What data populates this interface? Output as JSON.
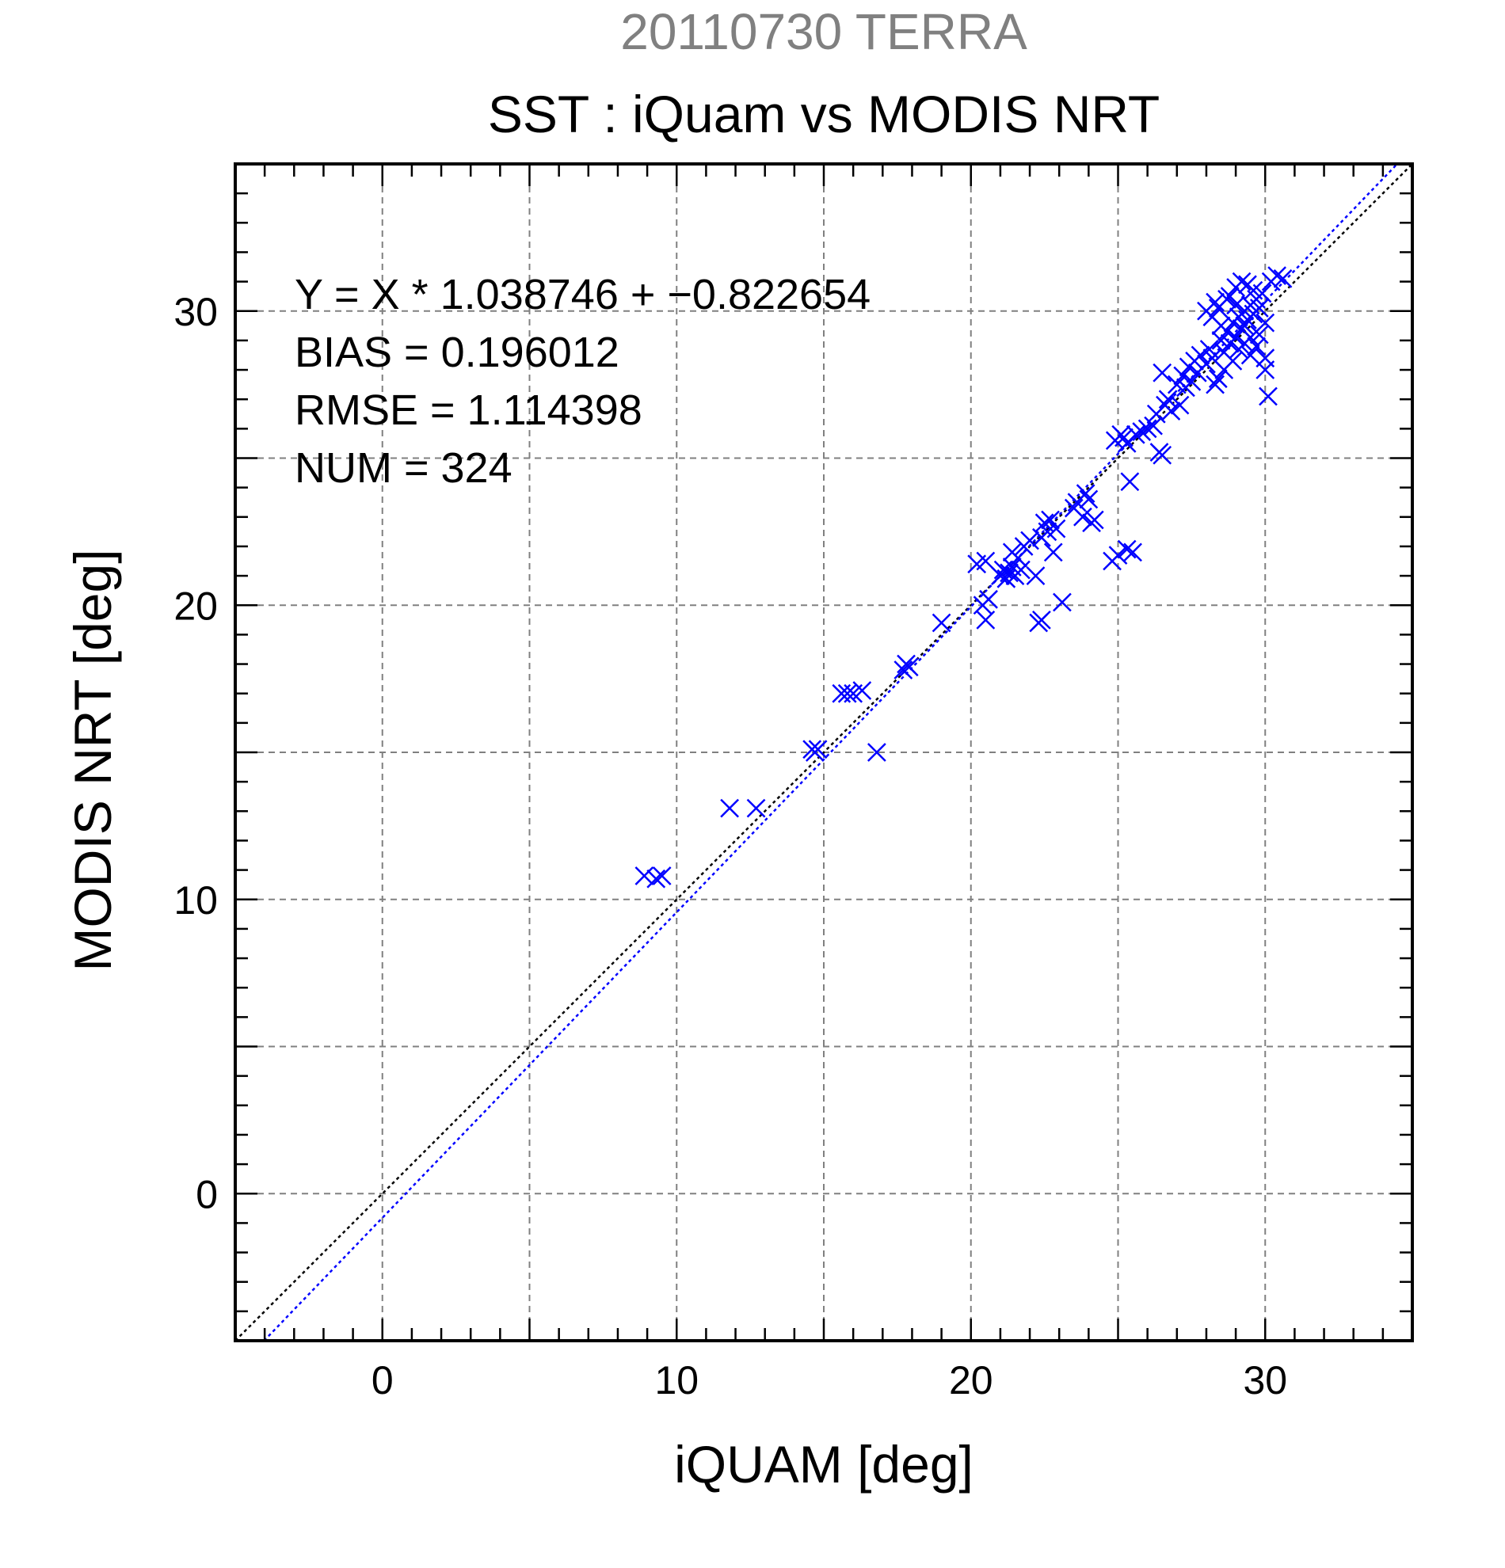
{
  "chart_data": {
    "type": "scatter",
    "supertitle": "20110730 TERRA",
    "title": "SST : iQuam vs MODIS NRT",
    "xlabel": "iQUAM [deg]",
    "ylabel": "MODIS NRT [deg]",
    "xlim": [
      -5,
      35
    ],
    "ylim": [
      -5,
      35
    ],
    "xticks": [
      0,
      10,
      20,
      30
    ],
    "yticks": [
      0,
      10,
      20,
      30
    ],
    "grid": true,
    "marker": "x",
    "annotations": [
      "Y = X * 1.038746 + −0.822654",
      "BIAS = 0.196012",
      "RMSE = 1.114398",
      "NUM = 324"
    ],
    "lines": [
      {
        "slope": 1.0,
        "intercept": 0.0,
        "color": "#000000",
        "style": "dotted"
      },
      {
        "slope": 1.038746,
        "intercept": -0.822654,
        "color": "#0000ff",
        "style": "dotted"
      }
    ],
    "colors": {
      "points": "#0000ff",
      "supertitle": "#808080",
      "grid": "#808080",
      "axis": "#000000"
    },
    "points": [
      [
        8.9,
        10.8
      ],
      [
        9.3,
        10.7
      ],
      [
        9.5,
        10.8
      ],
      [
        11.8,
        13.1
      ],
      [
        12.7,
        13.1
      ],
      [
        14.6,
        15.1
      ],
      [
        14.7,
        15.0
      ],
      [
        14.8,
        15.1
      ],
      [
        15.6,
        17.0
      ],
      [
        15.8,
        17.0
      ],
      [
        16.0,
        17.0
      ],
      [
        16.3,
        17.1
      ],
      [
        16.8,
        15.0
      ],
      [
        17.7,
        17.8
      ],
      [
        17.8,
        18.0
      ],
      [
        17.9,
        17.9
      ],
      [
        19.0,
        19.4
      ],
      [
        20.2,
        21.4
      ],
      [
        20.5,
        21.5
      ],
      [
        20.4,
        20.0
      ],
      [
        20.5,
        19.5
      ],
      [
        20.6,
        20.2
      ],
      [
        21.0,
        21.0
      ],
      [
        21.1,
        21.2
      ],
      [
        21.2,
        20.9
      ],
      [
        21.3,
        21.1
      ],
      [
        21.4,
        21.3
      ],
      [
        21.5,
        21.0
      ],
      [
        21.6,
        21.6
      ],
      [
        21.7,
        21.2
      ],
      [
        21.4,
        21.8
      ],
      [
        21.8,
        22.0
      ],
      [
        22.0,
        22.2
      ],
      [
        22.3,
        19.4
      ],
      [
        22.4,
        19.5
      ],
      [
        22.2,
        21.0
      ],
      [
        22.5,
        22.8
      ],
      [
        22.6,
        22.5
      ],
      [
        22.7,
        22.9
      ],
      [
        22.4,
        22.3
      ],
      [
        22.9,
        22.6
      ],
      [
        22.8,
        21.8
      ],
      [
        23.1,
        20.1
      ],
      [
        23.6,
        23.5
      ],
      [
        23.8,
        23.0
      ],
      [
        23.9,
        23.8
      ],
      [
        24.0,
        23.6
      ],
      [
        24.1,
        22.8
      ],
      [
        24.2,
        22.9
      ],
      [
        23.5,
        23.3
      ],
      [
        24.8,
        21.5
      ],
      [
        25.0,
        21.7
      ],
      [
        25.3,
        21.9
      ],
      [
        25.5,
        21.8
      ],
      [
        25.4,
        24.2
      ],
      [
        24.9,
        25.6
      ],
      [
        25.1,
        25.8
      ],
      [
        25.2,
        25.7
      ],
      [
        25.3,
        25.5
      ],
      [
        25.6,
        25.8
      ],
      [
        25.8,
        25.9
      ],
      [
        26.0,
        26.0
      ],
      [
        26.2,
        26.1
      ],
      [
        26.4,
        25.2
      ],
      [
        26.5,
        25.1
      ],
      [
        26.3,
        26.5
      ],
      [
        26.6,
        26.8
      ],
      [
        26.7,
        27.0
      ],
      [
        26.8,
        26.6
      ],
      [
        26.5,
        27.9
      ],
      [
        27.0,
        27.5
      ],
      [
        27.1,
        26.8
      ],
      [
        27.2,
        27.8
      ],
      [
        27.3,
        27.4
      ],
      [
        27.4,
        28.1
      ],
      [
        27.5,
        27.6
      ],
      [
        27.6,
        28.3
      ],
      [
        27.7,
        27.9
      ],
      [
        27.8,
        28.5
      ],
      [
        28.0,
        28.2
      ],
      [
        28.1,
        28.7
      ],
      [
        28.2,
        28.4
      ],
      [
        28.3,
        27.5
      ],
      [
        28.4,
        27.7
      ],
      [
        28.5,
        29.0
      ],
      [
        28.6,
        28.6
      ],
      [
        28.7,
        29.3
      ],
      [
        28.8,
        28.9
      ],
      [
        28.9,
        29.6
      ],
      [
        29.0,
        29.1
      ],
      [
        29.1,
        29.8
      ],
      [
        29.2,
        29.4
      ],
      [
        29.3,
        30.0
      ],
      [
        29.4,
        29.7
      ],
      [
        29.5,
        30.2
      ],
      [
        29.6,
        29.9
      ],
      [
        29.7,
        30.4
      ],
      [
        29.8,
        30.1
      ],
      [
        29.9,
        30.6
      ],
      [
        30.0,
        28.4
      ],
      [
        30.0,
        28.0
      ],
      [
        30.1,
        27.1
      ],
      [
        30.2,
        31.0
      ],
      [
        30.4,
        31.2
      ],
      [
        30.6,
        31.1
      ],
      [
        28.0,
        30.0
      ],
      [
        28.3,
        30.3
      ],
      [
        28.5,
        29.5
      ],
      [
        28.8,
        30.5
      ],
      [
        29.0,
        30.8
      ],
      [
        29.2,
        31.0
      ],
      [
        29.4,
        30.9
      ],
      [
        29.6,
        30.7
      ],
      [
        29.8,
        29.2
      ],
      [
        30.0,
        29.6
      ],
      [
        28.6,
        28.0
      ],
      [
        28.9,
        28.3
      ],
      [
        29.1,
        28.7
      ],
      [
        29.3,
        28.9
      ],
      [
        29.5,
        29.1
      ],
      [
        29.7,
        28.8
      ],
      [
        28.2,
        29.8
      ],
      [
        28.4,
        30.1
      ],
      [
        28.7,
        30.4
      ],
      [
        29.0,
        30.2
      ],
      [
        29.3,
        29.5
      ],
      [
        29.5,
        28.5
      ]
    ]
  }
}
